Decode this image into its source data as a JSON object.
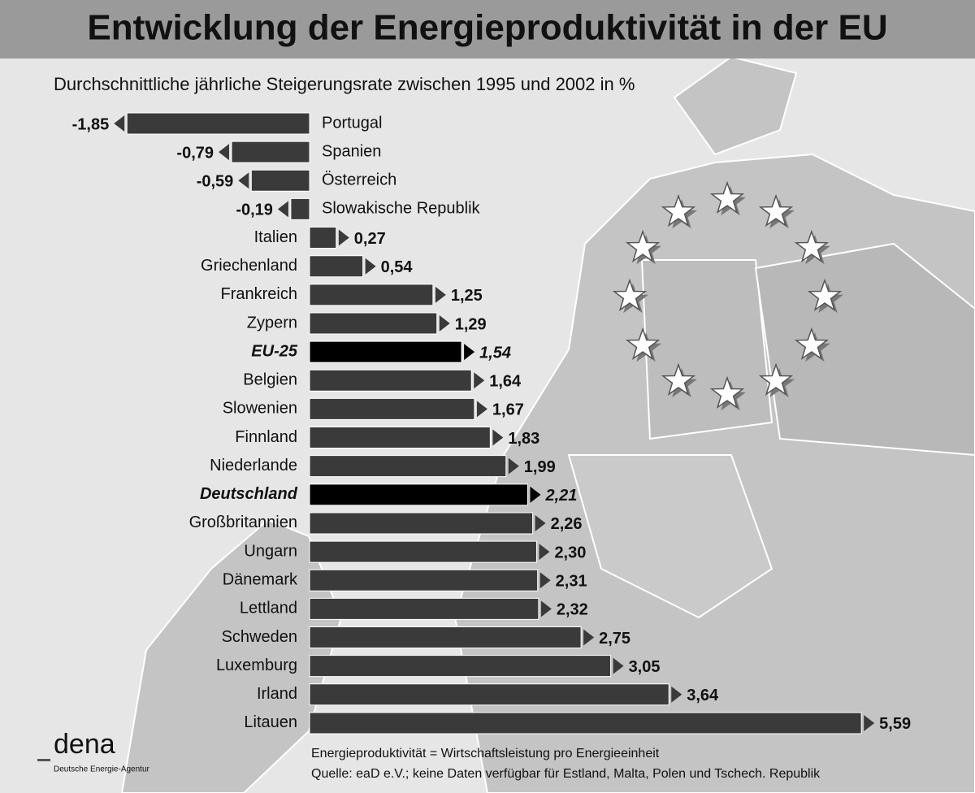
{
  "chart_data": {
    "type": "bar",
    "orientation": "horizontal",
    "title": "Entwicklung der Energieproduktivität in der EU",
    "subtitle": "Durchschnittliche jährliche Steigerungsrate zwischen 1995 und 2002 in %",
    "categories": [
      "Portugal",
      "Spanien",
      "Österreich",
      "Slowakische Republik",
      "Italien",
      "Griechenland",
      "Frankreich",
      "Zypern",
      "EU-25",
      "Belgien",
      "Slowenien",
      "Finnland",
      "Niederlande",
      "Deutschland",
      "Großbritannien",
      "Ungarn",
      "Dänemark",
      "Lettland",
      "Schweden",
      "Luxemburg",
      "Irland",
      "Litauen"
    ],
    "values": [
      -1.85,
      -0.79,
      -0.59,
      -0.19,
      0.27,
      0.54,
      1.25,
      1.29,
      1.54,
      1.64,
      1.67,
      1.83,
      1.99,
      2.21,
      2.26,
      2.3,
      2.31,
      2.32,
      2.75,
      3.05,
      3.64,
      5.59
    ],
    "value_labels": [
      "-1,85",
      "-0,79",
      "-0,59",
      "-0,19",
      "0,27",
      "0,54",
      "1,25",
      "1,29",
      "1,54",
      "1,64",
      "1,67",
      "1,83",
      "1,99",
      "2,21",
      "2,26",
      "2,30",
      "2,31",
      "2,32",
      "2,75",
      "3,05",
      "3,64",
      "5,59"
    ],
    "color": "#3a3a3a",
    "highlight_color": "#000000",
    "colors": [
      "#3a3a3a",
      "#3a3a3a",
      "#3a3a3a",
      "#3a3a3a",
      "#3a3a3a",
      "#3a3a3a",
      "#3a3a3a",
      "#3a3a3a",
      "#000000",
      "#3a3a3a",
      "#3a3a3a",
      "#3a3a3a",
      "#3a3a3a",
      "#000000",
      "#3a3a3a",
      "#3a3a3a",
      "#3a3a3a",
      "#3a3a3a",
      "#3a3a3a",
      "#3a3a3a",
      "#3a3a3a",
      "#3a3a3a"
    ],
    "notes": [
      "Energieproduktivität = Wirtschaftsleistung pro Energieeinheit",
      "Quelle: eaD e.V.; keine Daten verfügbar für Estland, Malta, Polen und Tschech. Republik"
    ],
    "logo": {
      "name": "dena",
      "tagline": "Deutsche Energie-Agentur"
    }
  }
}
